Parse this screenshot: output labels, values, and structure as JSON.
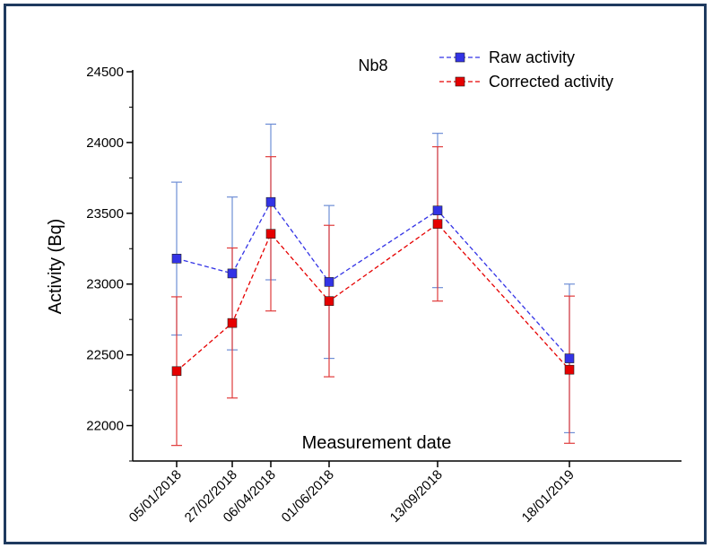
{
  "chart_data": {
    "type": "line",
    "title": "Nb8",
    "xlabel": "Measurement date",
    "ylabel": "Activity (Bq)",
    "ylim": [
      21750,
      24500
    ],
    "yticks": [
      22000,
      22500,
      23000,
      23500,
      24000,
      24500
    ],
    "x": [
      "05/01/2018",
      "27/02/2018",
      "06/04/2018",
      "01/06/2018",
      "13/09/2018",
      "18/01/2019"
    ],
    "legend_position": "top-right",
    "grid": false,
    "series": [
      {
        "name": "Raw activity",
        "color": "#3333e6",
        "error_bar_color": "#6f8fd6",
        "marker": "square",
        "line_style": "dashed",
        "values": [
          23180,
          23075,
          23580,
          23015,
          23520,
          22475
        ],
        "errors": [
          540,
          540,
          550,
          540,
          545,
          525
        ]
      },
      {
        "name": "Corrected activity",
        "color": "#e60000",
        "error_bar_color": "#e03b3b",
        "marker": "square",
        "line_style": "dashed",
        "values": [
          22385,
          22725,
          23355,
          22880,
          23425,
          22395
        ],
        "errors": [
          525,
          530,
          545,
          535,
          545,
          520
        ]
      }
    ]
  }
}
